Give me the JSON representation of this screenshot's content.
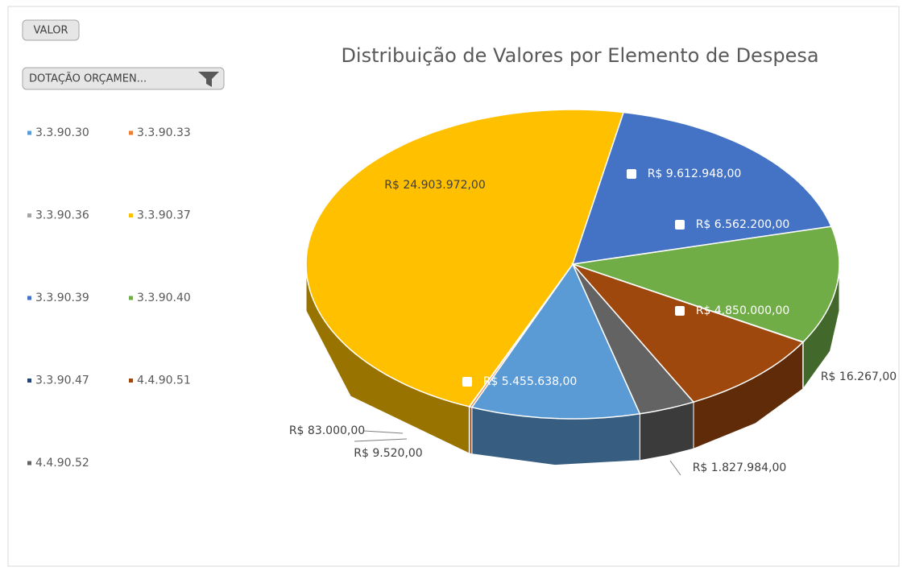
{
  "field_buttons": [
    "VALOR",
    "DOTAÇÃO ORÇAMEN..."
  ],
  "chart_data": {
    "type": "pie",
    "title": "Distribuição de Valores por Elemento de Despesa",
    "categories": [
      "3.3.90.30",
      "3.3.90.33",
      "3.3.90.36",
      "3.3.90.37",
      "3.3.90.39",
      "3.3.90.40",
      "3.3.90.47",
      "4.4.90.51",
      "4.4.90.52"
    ],
    "values": [
      5455638,
      83000,
      9520,
      24903972,
      9612948,
      6562200,
      16267,
      4850000,
      1827984
    ],
    "value_labels": [
      "R$ 5.455.638,00",
      "R$ 83.000,00",
      "R$ 9.520,00",
      "R$ 24.903.972,00",
      "R$ 9.612.948,00",
      "R$ 6.562.200,00",
      "R$ 16.267,00",
      "R$ 4.850.000,00",
      "R$ 1.827.984,00"
    ],
    "colors": [
      "#5b9bd5",
      "#ed7d31",
      "#a5a5a5",
      "#ffc000",
      "#4472c4",
      "#70ad47",
      "#264478",
      "#9e480e",
      "#636363"
    ],
    "legend": "left"
  }
}
